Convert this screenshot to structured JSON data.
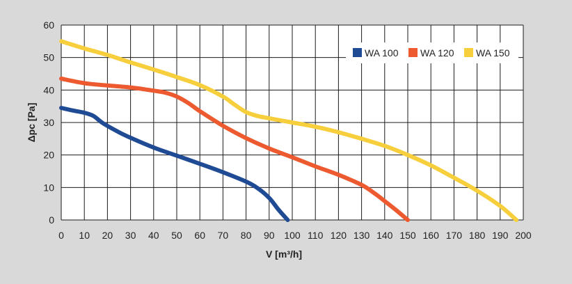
{
  "chart_data": {
    "type": "line",
    "title": "",
    "xlabel": "V [m³/h]",
    "ylabel": "Δpc [Pa]",
    "xlim": [
      0,
      200
    ],
    "ylim": [
      0,
      60
    ],
    "xticks": [
      0,
      10,
      20,
      30,
      40,
      50,
      60,
      70,
      80,
      90,
      100,
      110,
      120,
      130,
      140,
      150,
      160,
      170,
      180,
      190,
      200
    ],
    "yticks": [
      0,
      10,
      20,
      30,
      40,
      50,
      60
    ],
    "grid": true,
    "legend_position": "top-right",
    "series": [
      {
        "name": "WA 100",
        "color": "#1f4a94",
        "points": [
          [
            0,
            34.5
          ],
          [
            5,
            33.7
          ],
          [
            10,
            33.0
          ],
          [
            14,
            32.0
          ],
          [
            18,
            29.8
          ],
          [
            25,
            27.0
          ],
          [
            30,
            25.3
          ],
          [
            40,
            22.3
          ],
          [
            50,
            19.8
          ],
          [
            60,
            17.3
          ],
          [
            70,
            14.7
          ],
          [
            80,
            11.8
          ],
          [
            85,
            9.8
          ],
          [
            90,
            6.8
          ],
          [
            94,
            3.2
          ],
          [
            98,
            0
          ]
        ]
      },
      {
        "name": "WA 120",
        "color": "#ed5a30",
        "points": [
          [
            0,
            43.5
          ],
          [
            10,
            42.1
          ],
          [
            20,
            41.4
          ],
          [
            30,
            40.8
          ],
          [
            40,
            39.8
          ],
          [
            45,
            39.2
          ],
          [
            50,
            38.0
          ],
          [
            55,
            36.0
          ],
          [
            60,
            33.5
          ],
          [
            70,
            29.0
          ],
          [
            80,
            25.2
          ],
          [
            90,
            22.0
          ],
          [
            100,
            19.3
          ],
          [
            110,
            16.5
          ],
          [
            120,
            13.9
          ],
          [
            130,
            10.8
          ],
          [
            136,
            8.0
          ],
          [
            140,
            5.8
          ],
          [
            145,
            3.0
          ],
          [
            150,
            0
          ]
        ]
      },
      {
        "name": "WA 150",
        "color": "#f7ce3c",
        "points": [
          [
            0,
            55.0
          ],
          [
            10,
            52.8
          ],
          [
            20,
            50.8
          ],
          [
            30,
            48.5
          ],
          [
            40,
            46.3
          ],
          [
            50,
            44.0
          ],
          [
            60,
            41.5
          ],
          [
            70,
            38.0
          ],
          [
            75,
            35.5
          ],
          [
            80,
            33.2
          ],
          [
            85,
            32.0
          ],
          [
            90,
            31.3
          ],
          [
            100,
            30.0
          ],
          [
            110,
            28.7
          ],
          [
            120,
            27.0
          ],
          [
            130,
            25.0
          ],
          [
            140,
            22.8
          ],
          [
            150,
            20.0
          ],
          [
            160,
            16.8
          ],
          [
            170,
            13.0
          ],
          [
            180,
            9.0
          ],
          [
            190,
            4.3
          ],
          [
            197,
            0
          ]
        ]
      }
    ]
  }
}
